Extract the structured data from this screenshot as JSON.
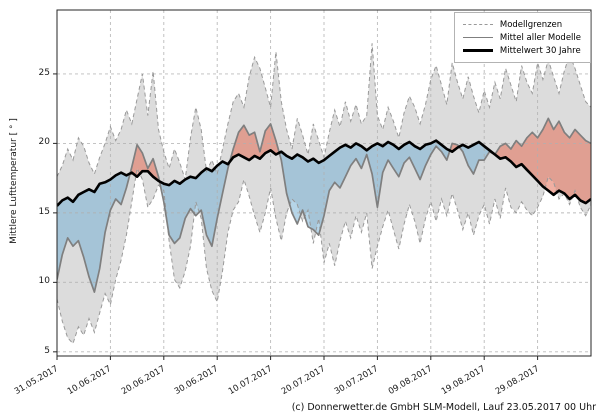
{
  "chart_data": {
    "type": "line",
    "title": "",
    "ylabel": "Mittlere Lufttemperatur [ ° ]",
    "xlabel": "",
    "grid": "dashed",
    "legend_position": "upper right",
    "legend": [
      "Modellgrenzen",
      "Mittel aller Modelle",
      "Mittelwert 30 Jahre"
    ],
    "footer": "(c) Donnerwetter.de GmbH SLM-Modell, Lauf 23.05.2017 00 Uhr",
    "ylim": [
      4.7,
      29.6
    ],
    "yticks": [
      5,
      10,
      15,
      20,
      25
    ],
    "xlim_days": [
      0,
      100
    ],
    "x_tick_days": [
      0,
      10,
      20,
      30,
      40,
      50,
      60,
      70,
      80,
      90
    ],
    "x_tick_labels": [
      "31.05.2017",
      "10.06.2017",
      "20.06.2017",
      "30.06.2017",
      "10.07.2017",
      "20.07.2017",
      "30.07.2017",
      "09.08.2017",
      "19.08.2017",
      "29.08.2017"
    ],
    "colors": {
      "envelope_fill": "#dcdcdc",
      "envelope_edge": "#999999",
      "warm_fill": "rgba(228,110,85,0.55)",
      "cold_fill": "rgba(115,175,210,0.52)",
      "model_mean_line": "#7f7f7f",
      "climate_line": "#000000",
      "grid": "rgba(175,175,175,0.85)",
      "frame": "#262626"
    },
    "series": [
      {
        "name": "Modellgrenzen (oben)",
        "key": "env_max",
        "values": [
          17.6,
          18.4,
          19.6,
          18.8,
          20.4,
          19.8,
          18.6,
          17.8,
          19.0,
          20.0,
          21.2,
          20.2,
          21.0,
          22.4,
          21.4,
          23.2,
          25.0,
          22.0,
          25.2,
          21.0,
          19.4,
          18.2,
          19.6,
          18.6,
          17.4,
          20.4,
          22.6,
          21.0,
          18.0,
          18.8,
          17.8,
          19.6,
          21.4,
          23.0,
          23.6,
          22.6,
          24.8,
          26.2,
          25.4,
          24.0,
          22.6,
          26.6,
          23.0,
          21.0,
          19.6,
          21.8,
          20.6,
          19.2,
          21.4,
          20.2,
          19.0,
          20.8,
          22.4,
          21.2,
          23.0,
          21.6,
          22.8,
          21.4,
          22.0,
          27.2,
          22.0,
          21.0,
          22.6,
          21.6,
          20.4,
          22.2,
          23.4,
          22.6,
          21.4,
          22.8,
          24.6,
          25.6,
          24.2,
          22.8,
          25.8,
          24.4,
          23.2,
          24.8,
          23.4,
          22.2,
          23.8,
          22.6,
          24.4,
          23.2,
          25.4,
          24.2,
          23.0,
          25.6,
          24.4,
          23.6,
          25.8,
          24.6,
          26.0,
          24.8,
          23.6,
          25.2,
          26.4,
          25.4,
          24.2,
          23.0,
          22.6
        ]
      },
      {
        "name": "Modellgrenzen (unten)",
        "key": "env_min",
        "values": [
          8.8,
          7.2,
          6.0,
          5.6,
          6.8,
          6.2,
          7.4,
          6.4,
          7.8,
          9.2,
          8.4,
          10.2,
          11.6,
          13.4,
          15.8,
          18.2,
          17.4,
          15.4,
          16.0,
          17.0,
          16.6,
          13.0,
          10.2,
          9.6,
          10.8,
          12.6,
          15.8,
          14.6,
          11.0,
          9.4,
          8.6,
          10.8,
          13.6,
          15.2,
          15.8,
          17.4,
          16.2,
          14.8,
          13.6,
          15.0,
          16.8,
          14.6,
          13.0,
          15.0,
          16.0,
          15.6,
          14.4,
          15.2,
          12.8,
          14.6,
          11.4,
          12.8,
          11.2,
          13.0,
          14.4,
          13.2,
          14.8,
          13.6,
          15.0,
          11.0,
          12.6,
          14.0,
          15.2,
          13.8,
          12.4,
          14.2,
          15.6,
          14.4,
          12.8,
          14.6,
          15.8,
          14.4,
          16.0,
          14.8,
          16.4,
          15.2,
          13.8,
          15.0,
          13.4,
          14.8,
          15.6,
          14.2,
          16.0,
          14.6,
          16.8,
          15.4,
          15.0,
          15.8,
          15.2,
          14.8,
          15.4,
          16.2,
          17.6,
          17.2,
          16.0,
          16.4,
          15.6,
          16.6,
          15.4,
          14.8,
          15.6
        ]
      },
      {
        "name": "Mittel aller Modelle",
        "key": "model_mean",
        "values": [
          10.2,
          12.0,
          13.2,
          12.6,
          13.0,
          11.8,
          10.4,
          9.3,
          11.0,
          13.6,
          15.2,
          16.0,
          15.6,
          16.8,
          18.3,
          19.9,
          19.3,
          18.2,
          18.9,
          17.6,
          15.8,
          13.4,
          12.8,
          13.2,
          14.6,
          15.3,
          14.8,
          15.2,
          13.4,
          12.6,
          14.6,
          16.4,
          18.2,
          19.6,
          20.8,
          21.3,
          20.6,
          20.8,
          19.4,
          20.9,
          21.4,
          20.2,
          18.8,
          16.4,
          15.0,
          14.2,
          15.2,
          14.0,
          13.8,
          13.4,
          14.8,
          16.6,
          17.2,
          16.8,
          17.6,
          18.4,
          18.9,
          18.2,
          19.2,
          17.8,
          15.4,
          17.9,
          18.8,
          18.2,
          17.6,
          18.6,
          19.0,
          18.2,
          17.4,
          18.4,
          19.2,
          19.8,
          19.4,
          18.8,
          20.0,
          19.9,
          19.4,
          18.4,
          17.8,
          18.8,
          18.8,
          19.4,
          19.2,
          19.8,
          20.0,
          19.6,
          20.2,
          19.8,
          20.4,
          20.8,
          20.4,
          21.0,
          21.8,
          21.0,
          21.6,
          20.8,
          20.4,
          21.0,
          20.6,
          20.2,
          20.0
        ]
      },
      {
        "name": "Mittelwert 30 Jahre",
        "key": "climate_mean",
        "values": [
          15.5,
          15.9,
          16.1,
          15.8,
          16.3,
          16.5,
          16.7,
          16.5,
          17.1,
          17.2,
          17.4,
          17.7,
          17.9,
          17.7,
          17.9,
          17.6,
          18.0,
          18.0,
          17.6,
          17.3,
          17.1,
          17.0,
          17.3,
          17.1,
          17.4,
          17.6,
          17.5,
          17.9,
          18.2,
          18.0,
          18.4,
          18.7,
          18.5,
          19.0,
          19.2,
          19.0,
          18.8,
          19.1,
          18.9,
          19.3,
          19.5,
          19.2,
          19.4,
          19.1,
          18.9,
          19.2,
          19.0,
          18.7,
          18.9,
          18.6,
          18.8,
          19.1,
          19.4,
          19.7,
          19.9,
          19.7,
          20.0,
          19.8,
          19.5,
          19.8,
          20.0,
          19.8,
          20.1,
          19.9,
          19.6,
          19.9,
          20.1,
          19.8,
          19.6,
          19.9,
          20.0,
          20.2,
          19.9,
          19.6,
          19.4,
          19.7,
          19.9,
          19.7,
          19.9,
          20.1,
          19.8,
          19.5,
          19.2,
          18.9,
          19.0,
          18.7,
          18.3,
          18.5,
          18.1,
          17.7,
          17.3,
          16.9,
          16.6,
          16.3,
          16.6,
          16.4,
          16.0,
          16.3,
          15.9,
          15.7,
          16.0
        ]
      }
    ]
  }
}
